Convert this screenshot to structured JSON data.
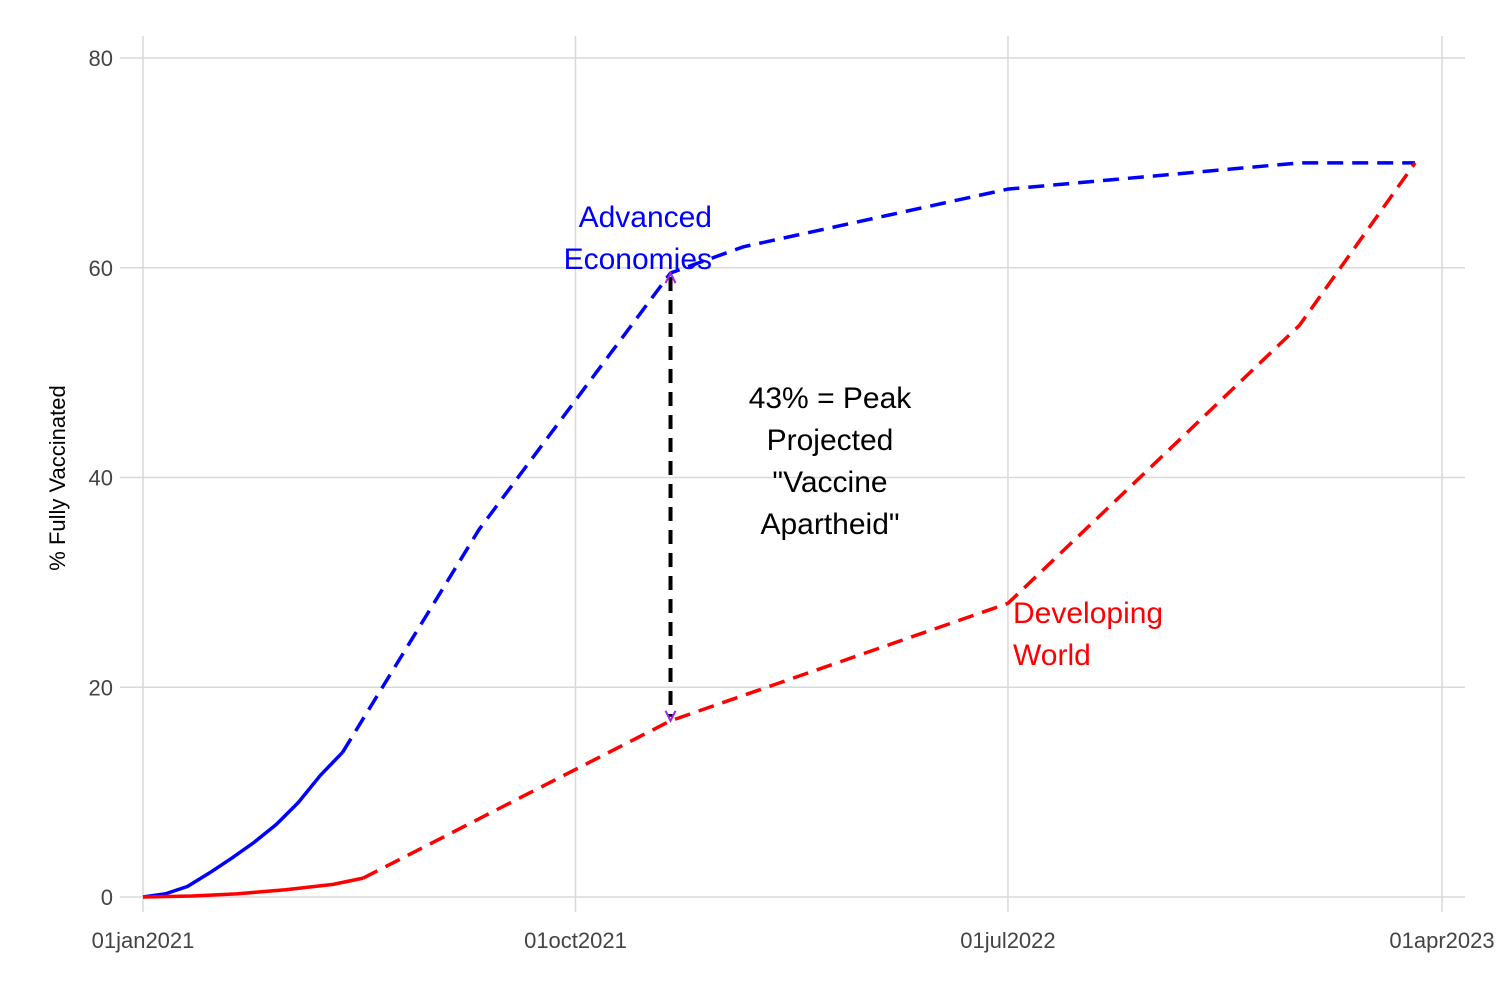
{
  "chart_data": {
    "type": "line",
    "title": "",
    "xlabel": "",
    "ylabel": "% Fully Vaccinated",
    "x_ticks": [
      "01jan2021",
      "01oct2021",
      "01jul2022",
      "01apr2023"
    ],
    "y_ticks": [
      0,
      20,
      40,
      60,
      80
    ],
    "ylim": [
      0,
      80
    ],
    "xlim": [
      "2021-01-01",
      "2023-04-01"
    ],
    "grid": true,
    "colors": {
      "advanced": "#0000ff",
      "developing": "#ff0000",
      "gap_arrow": "#000000",
      "arrow_head": "#a020f0"
    },
    "series": [
      {
        "key": "advanced_actual",
        "style": "solid",
        "color_key": "advanced",
        "points": [
          [
            "2021-01-01",
            0
          ],
          [
            "2021-01-15",
            0.3
          ],
          [
            "2021-01-29",
            1.0
          ],
          [
            "2021-02-12",
            2.3
          ],
          [
            "2021-02-26",
            3.7
          ],
          [
            "2021-03-12",
            5.2
          ],
          [
            "2021-03-26",
            6.9
          ],
          [
            "2021-04-09",
            9.0
          ],
          [
            "2021-04-23",
            11.6
          ],
          [
            "2021-05-07",
            13.8
          ]
        ]
      },
      {
        "key": "advanced_projected",
        "style": "dashed",
        "color_key": "advanced",
        "points": [
          [
            "2021-05-07",
            13.8
          ],
          [
            "2021-08-01",
            35.0
          ],
          [
            "2021-11-30",
            59.5
          ],
          [
            "2022-01-15",
            62.0
          ],
          [
            "2022-07-01",
            67.5
          ],
          [
            "2023-01-01",
            70.0
          ],
          [
            "2023-03-15",
            70.0
          ]
        ]
      },
      {
        "key": "developing_actual",
        "style": "solid",
        "color_key": "developing",
        "points": [
          [
            "2021-01-01",
            0
          ],
          [
            "2021-02-01",
            0.1
          ],
          [
            "2021-03-01",
            0.3
          ],
          [
            "2021-04-01",
            0.7
          ],
          [
            "2021-05-01",
            1.2
          ],
          [
            "2021-05-20",
            1.8
          ]
        ]
      },
      {
        "key": "developing_projected",
        "style": "dashed",
        "color_key": "developing",
        "points": [
          [
            "2021-05-20",
            1.8
          ],
          [
            "2021-11-30",
            16.8
          ],
          [
            "2022-07-01",
            28.0
          ],
          [
            "2023-01-01",
            54.5
          ],
          [
            "2023-03-15",
            70.0
          ]
        ]
      }
    ],
    "gap_marker": {
      "x": "2021-11-30",
      "y_top": 59.5,
      "y_bottom": 16.8
    },
    "annotations": {
      "advanced_label": [
        "Advanced",
        "Economies"
      ],
      "developing_label": [
        "Developing",
        "World"
      ],
      "gap_label": [
        "43% = Peak",
        "Projected",
        "\"Vaccine",
        "Apartheid\""
      ]
    }
  }
}
